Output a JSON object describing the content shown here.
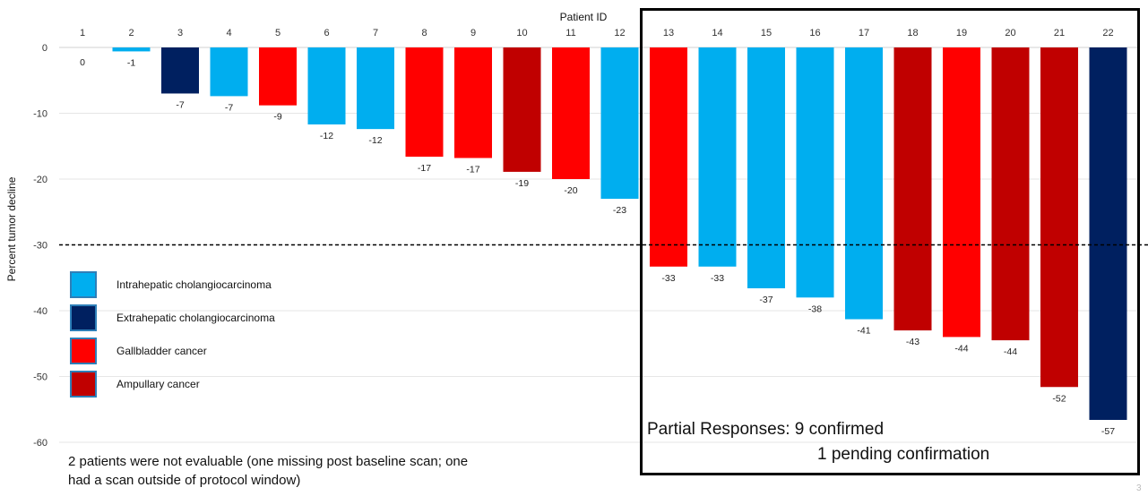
{
  "chart_data": {
    "type": "bar",
    "xlabel": "Patient ID",
    "ylabel": "Percent tumor decline",
    "ylim": [
      -60,
      0
    ],
    "yticks": [
      0,
      -10,
      -20,
      -30,
      -40,
      -50,
      -60
    ],
    "grid": true,
    "threshold": -30,
    "categories": [
      "1",
      "2",
      "3",
      "4",
      "5",
      "6",
      "7",
      "8",
      "9",
      "10",
      "11",
      "12",
      "13",
      "14",
      "15",
      "16",
      "17",
      "18",
      "19",
      "20",
      "21",
      "22"
    ],
    "values": [
      0,
      -1,
      -7,
      -7,
      -9,
      -12,
      -12,
      -17,
      -17,
      -19,
      -20,
      -23,
      -33,
      -33,
      -37,
      -38,
      -41,
      -43,
      -44,
      -44,
      -52,
      -57
    ],
    "bar_values": [
      0,
      -0.6,
      -7,
      -7.4,
      -8.8,
      -11.7,
      -12.4,
      -16.6,
      -16.8,
      -18.9,
      -20,
      -23,
      -33.3,
      -33.3,
      -36.6,
      -38,
      -41.3,
      -43,
      -44,
      -44.5,
      -51.6,
      -56.6
    ],
    "bar_groups": [
      "intrahepatic",
      "intrahepatic",
      "extrahepatic",
      "intrahepatic",
      "gallbladder",
      "intrahepatic",
      "intrahepatic",
      "gallbladder",
      "gallbladder",
      "ampullary",
      "gallbladder",
      "intrahepatic",
      "gallbladder",
      "intrahepatic",
      "intrahepatic",
      "intrahepatic",
      "intrahepatic",
      "ampullary",
      "gallbladder",
      "ampullary",
      "ampullary",
      "extrahepatic"
    ],
    "legend": [
      {
        "key": "intrahepatic",
        "label": "Intrahepatic cholangiocarcinoma",
        "color": "#00aeef"
      },
      {
        "key": "extrahepatic",
        "label": "Extrahepatic cholangiocarcinoma",
        "color": "#002060"
      },
      {
        "key": "gallbladder",
        "label": "Gallbladder cancer",
        "color": "#ff0000"
      },
      {
        "key": "ampullary",
        "label": "Ampullary cancer",
        "color": "#c00000"
      }
    ],
    "legend_position": "left"
  },
  "annotations": {
    "note": "2 patients were not evaluable (one missing post baseline scan; one had a scan outside of protocol window)",
    "pr_line1": "Partial Responses: 9 confirmed",
    "pr_line2": "1 pending confirmation"
  },
  "page_number": "3"
}
